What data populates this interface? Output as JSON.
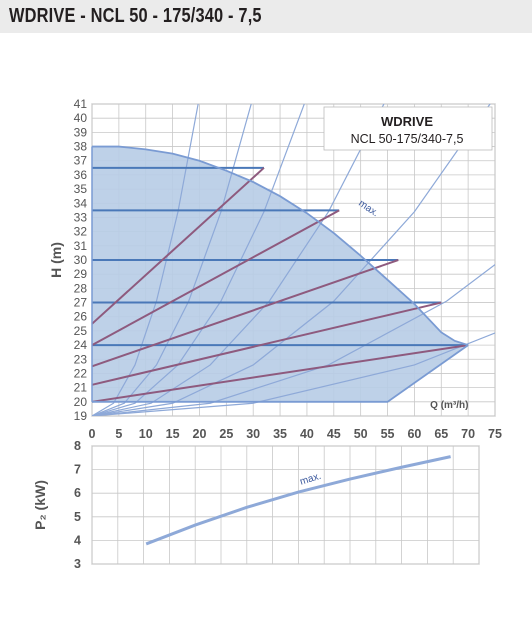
{
  "page": {
    "title": "WDRIVE - NCL 50 - 175/340 - 7,5"
  },
  "chart_data": [
    {
      "type": "line",
      "ylabel": "H (m)",
      "xlabel": "Q (m³/h)",
      "xlim": [
        0,
        75
      ],
      "ylim": [
        19,
        41
      ],
      "x_ticks": [
        0,
        5,
        10,
        15,
        20,
        25,
        30,
        35,
        40,
        45,
        50,
        55,
        60,
        65,
        70,
        75
      ],
      "y_ticks": [
        19,
        20,
        21,
        22,
        23,
        24,
        25,
        26,
        27,
        28,
        29,
        30,
        31,
        32,
        33,
        34,
        35,
        36,
        37,
        38,
        39,
        40,
        41
      ],
      "grid": true,
      "legend": {
        "title": "WDRIVE",
        "subtitle": "NCL 50-175/340-7,5",
        "placement": "top-right"
      },
      "max_label": "max.",
      "max_curve": {
        "x": [
          0,
          5,
          10,
          15,
          20,
          25,
          30,
          35,
          40,
          45,
          50,
          55,
          60,
          65,
          67.5,
          70
        ],
        "y": [
          38,
          38,
          37.8,
          37.5,
          37,
          36.3,
          35.5,
          34.5,
          33.3,
          31.9,
          30.3,
          28.6,
          26.9,
          24.9,
          24.3,
          24
        ]
      },
      "operating_region_bottom": {
        "x": [
          0,
          55,
          70
        ],
        "y": [
          20,
          20,
          24
        ]
      },
      "constant_pressure_lines": [
        {
          "y": 36.5,
          "x": [
            0,
            32
          ]
        },
        {
          "y": 33.5,
          "x": [
            0,
            46
          ]
        },
        {
          "y": 30,
          "x": [
            0,
            57
          ]
        },
        {
          "y": 27,
          "x": [
            0,
            65
          ]
        },
        {
          "y": 24,
          "x": [
            0,
            70
          ]
        }
      ],
      "proportional_pressure_lines": [
        {
          "x": [
            0,
            32
          ],
          "y": [
            25.5,
            36.5
          ]
        },
        {
          "x": [
            0,
            46
          ],
          "y": [
            24,
            33.5
          ]
        },
        {
          "x": [
            0,
            57
          ],
          "y": [
            22.5,
            30
          ]
        },
        {
          "x": [
            0,
            65
          ],
          "y": [
            21.2,
            27
          ]
        },
        {
          "x": [
            0,
            70
          ],
          "y": [
            20,
            24
          ]
        }
      ],
      "system_curves": [
        {
          "x": [
            0,
            4,
            8,
            12,
            16,
            20,
            24
          ],
          "y": [
            19,
            19.9,
            22.6,
            27.1,
            33.4,
            41.5,
            51.4
          ]
        },
        {
          "x": [
            0,
            6,
            12,
            18,
            24,
            30,
            36
          ],
          "y": [
            19,
            19.9,
            22.6,
            27.1,
            33.4,
            41.5,
            51.4
          ]
        },
        {
          "x": [
            0,
            8,
            16,
            24,
            32,
            40,
            48
          ],
          "y": [
            19,
            19.9,
            22.6,
            27.1,
            33.4,
            41.5,
            51.4
          ]
        },
        {
          "x": [
            0,
            11,
            22,
            33,
            44,
            55,
            66
          ],
          "y": [
            19,
            19.9,
            22.6,
            27.1,
            33.4,
            41.5,
            51.4
          ]
        },
        {
          "x": [
            0,
            15,
            30,
            45,
            60,
            75,
            90
          ],
          "y": [
            19,
            19.9,
            22.6,
            27.1,
            33.4,
            41.5,
            51.4
          ]
        },
        {
          "x": [
            0,
            22,
            44,
            66,
            88
          ],
          "y": [
            19,
            19.9,
            22.6,
            27.1,
            33.4
          ]
        },
        {
          "x": [
            0,
            30,
            60,
            90
          ],
          "y": [
            19,
            19.9,
            22.6,
            27.1
          ]
        }
      ]
    },
    {
      "type": "line",
      "ylabel": "P₂ (kW)",
      "xlim": [
        0,
        75
      ],
      "ylim": [
        3,
        8
      ],
      "y_ticks": [
        3,
        4,
        5,
        6,
        7,
        8
      ],
      "grid": true,
      "max_label": "max.",
      "series": [
        {
          "x": [
            10.5,
            20,
            30,
            40,
            50,
            60,
            69.5
          ],
          "y": [
            3.85,
            4.65,
            5.4,
            6.05,
            6.6,
            7.1,
            7.55
          ]
        }
      ]
    }
  ]
}
